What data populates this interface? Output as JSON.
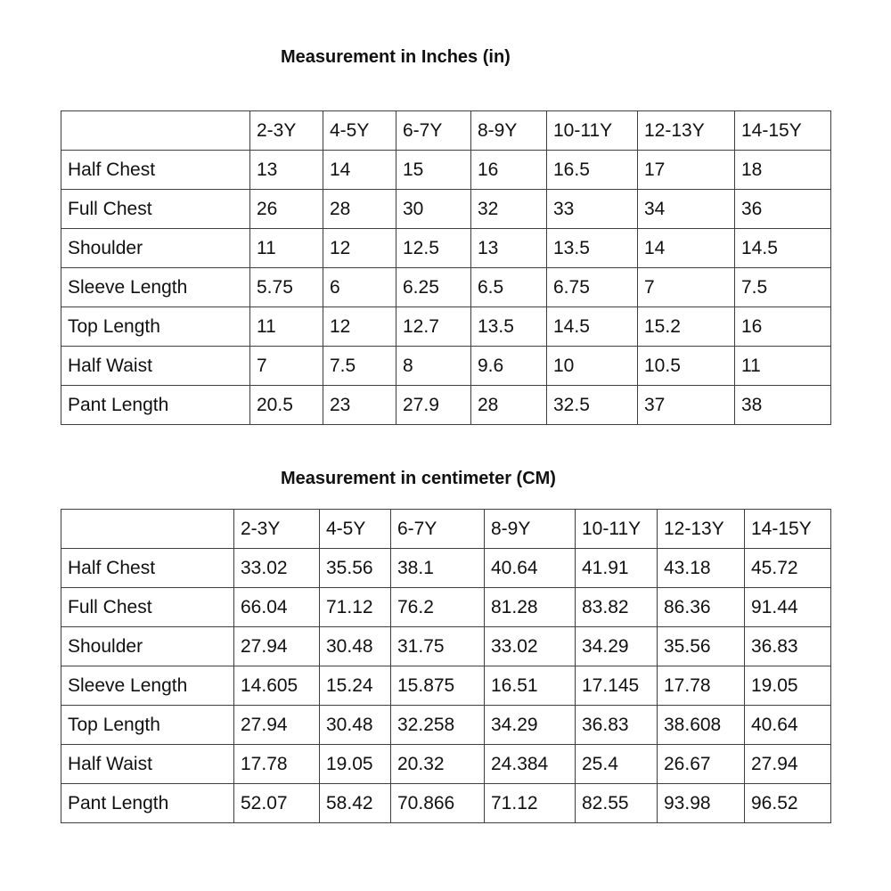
{
  "colors": {
    "background": "#ffffff",
    "text": "#111111",
    "table_border": "#3f3f3f"
  },
  "tables": [
    {
      "title": "Measurement in Inches (in)",
      "unit": "in",
      "columns": [
        "",
        "2-3Y",
        "4-5Y",
        "6-7Y",
        "8-9Y",
        "10-11Y",
        "12-13Y",
        "14-15Y"
      ],
      "rows": [
        {
          "label": "Half Chest",
          "values": [
            "13",
            "14",
            "15",
            "16",
            "16.5",
            "17",
            "18"
          ]
        },
        {
          "label": "Full Chest",
          "values": [
            "26",
            "28",
            "30",
            "32",
            "33",
            "34",
            "36"
          ]
        },
        {
          "label": "Shoulder",
          "values": [
            "11",
            "12",
            "12.5",
            "13",
            "13.5",
            "14",
            "14.5"
          ]
        },
        {
          "label": "Sleeve Length",
          "values": [
            "5.75",
            "6",
            "6.25",
            "6.5",
            "6.75",
            "7",
            "7.5"
          ]
        },
        {
          "label": "Top Length",
          "values": [
            "11",
            "12",
            "12.7",
            "13.5",
            "14.5",
            "15.2",
            "16"
          ]
        },
        {
          "label": "Half Waist",
          "values": [
            "7",
            "7.5",
            "8",
            "9.6",
            "10",
            "10.5",
            "11"
          ]
        },
        {
          "label": "Pant Length",
          "values": [
            "20.5",
            "23",
            "27.9",
            "28",
            "32.5",
            "37",
            "38"
          ]
        }
      ]
    },
    {
      "title": "Measurement in centimeter (CM)",
      "unit": "CM",
      "columns": [
        "",
        "2-3Y",
        "4-5Y",
        "6-7Y",
        "8-9Y",
        "10-11Y",
        "12-13Y",
        "14-15Y"
      ],
      "rows": [
        {
          "label": "Half Chest",
          "values": [
            "33.02",
            "35.56",
            "38.1",
            "40.64",
            "41.91",
            "43.18",
            "45.72"
          ]
        },
        {
          "label": "Full Chest",
          "values": [
            "66.04",
            "71.12",
            "76.2",
            "81.28",
            "83.82",
            "86.36",
            "91.44"
          ]
        },
        {
          "label": "Shoulder",
          "values": [
            "27.94",
            "30.48",
            "31.75",
            "33.02",
            "34.29",
            "35.56",
            "36.83"
          ]
        },
        {
          "label": "Sleeve Length",
          "values": [
            "14.605",
            "15.24",
            "15.875",
            "16.51",
            "17.145",
            "17.78",
            "19.05"
          ]
        },
        {
          "label": "Top Length",
          "values": [
            "27.94",
            "30.48",
            "32.258",
            "34.29",
            "36.83",
            "38.608",
            "40.64"
          ]
        },
        {
          "label": "Half Waist",
          "values": [
            "17.78",
            "19.05",
            "20.32",
            "24.384",
            "25.4",
            "26.67",
            "27.94"
          ]
        },
        {
          "label": "Pant Length",
          "values": [
            "52.07",
            "58.42",
            "70.866",
            "71.12",
            "82.55",
            "93.98",
            "96.52"
          ]
        }
      ]
    }
  ]
}
